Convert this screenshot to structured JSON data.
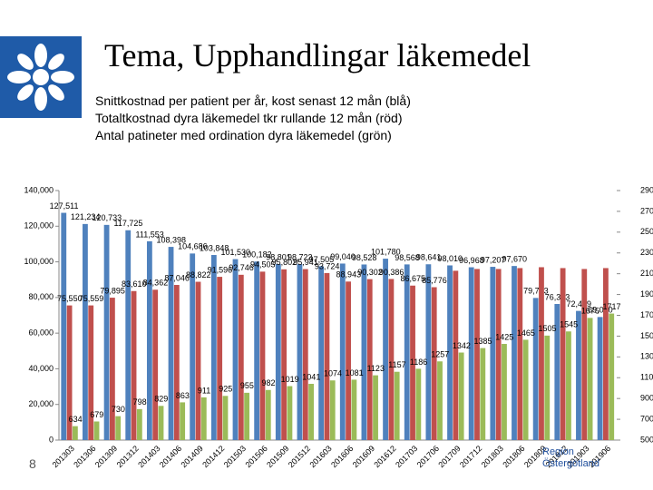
{
  "title": "Tema, Upphandlingar läkemedel",
  "subtitle": [
    "Snittkostnad per patient per år, kost senast 12 mån (blå)",
    "Totaltkostnad dyra läkemedel tkr rullande 12 mån (röd)",
    "Antal patineter med ordination dyra läkemedel (grön)"
  ],
  "slide_number": "8",
  "organization": [
    "Region",
    "Östergötland"
  ],
  "chart_data": {
    "type": "bar",
    "categories": [
      "201303",
      "201306",
      "201309",
      "201312",
      "201403",
      "201406",
      "201409",
      "201412",
      "201503",
      "201506",
      "201509",
      "201512",
      "201603",
      "201606",
      "201609",
      "201612",
      "201703",
      "201706",
      "201709",
      "201712",
      "201803",
      "201806",
      "201809",
      "201812",
      "201903",
      "201906"
    ],
    "series": [
      {
        "name": "Snittkostnad per patient",
        "color": "#4f81bd",
        "axis": "y",
        "values": [
          127511,
          121234,
          120733,
          117725,
          111553,
          108398,
          104686,
          103848,
          101530,
          100182,
          98801,
          98723,
          97505,
          99040,
          98528,
          101780,
          98568,
          98641,
          98010,
          96968,
          97207,
          97670,
          79743,
          76373,
          72479,
          69050
        ],
        "value_labels": [
          "127,511",
          "121,234",
          "120,733",
          "117,725",
          "111,553",
          "108,398",
          "104,686",
          "103,848",
          "101,530",
          "100,182",
          "98,801",
          "98,723",
          "97,505",
          "99,040",
          "98,528",
          "101,780",
          "98,568",
          "98,641",
          "98,010",
          "96,968",
          "97,207",
          "97,670",
          "79,743",
          "76,373",
          "72,479",
          "69,050"
        ]
      },
      {
        "name": "Totaltkostnad dyra läkemedel",
        "color": "#c0504d",
        "axis": "y",
        "values": [
          75550,
          75559,
          79895,
          83610,
          84362,
          87046,
          88822,
          91596,
          92746,
          94505,
          95802,
          95941,
          93724,
          88943,
          90302,
          90386,
          86675,
          85776,
          95000,
          96000,
          96000,
          96500,
          97000,
          96500,
          96000,
          96500
        ],
        "value_labels": [
          "75,550",
          "75,559",
          "79,895",
          "83,610",
          "84,362",
          "87,046",
          "88,822",
          "91,596",
          "92,746",
          "94,505",
          "95,802",
          "95,941",
          "93,724",
          "88,943",
          "90,302",
          "90,386",
          "86,675",
          "85,776",
          null,
          null,
          null,
          null,
          null,
          null,
          null,
          null
        ]
      },
      {
        "name": "Antal patienter",
        "color": "#9bbb59",
        "axis": "y2",
        "values": [
          634,
          679,
          730,
          798,
          829,
          863,
          911,
          925,
          955,
          982,
          1019,
          1041,
          1074,
          1081,
          1123,
          1157,
          1186,
          1257,
          1342,
          1385,
          1425,
          1465,
          1505,
          1545,
          1675,
          1717
        ]
      }
    ],
    "ylim": [
      0,
      140000
    ],
    "yticks": [
      0,
      {
        "value": 20000,
        "label": "20,000"
      },
      {
        "value": 40000,
        "label": "40,000"
      },
      {
        "value": 60000,
        "label": "60,000"
      },
      {
        "value": 80000,
        "label": "80,000"
      },
      {
        "value": 100000,
        "label": "100,000"
      },
      {
        "value": 120000,
        "label": "120,000"
      },
      {
        "value": 140000,
        "label": "140,000"
      }
    ],
    "y2lim": [
      500,
      2900
    ],
    "y2ticks": [
      500,
      700,
      900,
      1100,
      1300,
      1500,
      1700,
      1900,
      2100,
      2300,
      2500,
      2700,
      2900
    ],
    "grid": false
  }
}
